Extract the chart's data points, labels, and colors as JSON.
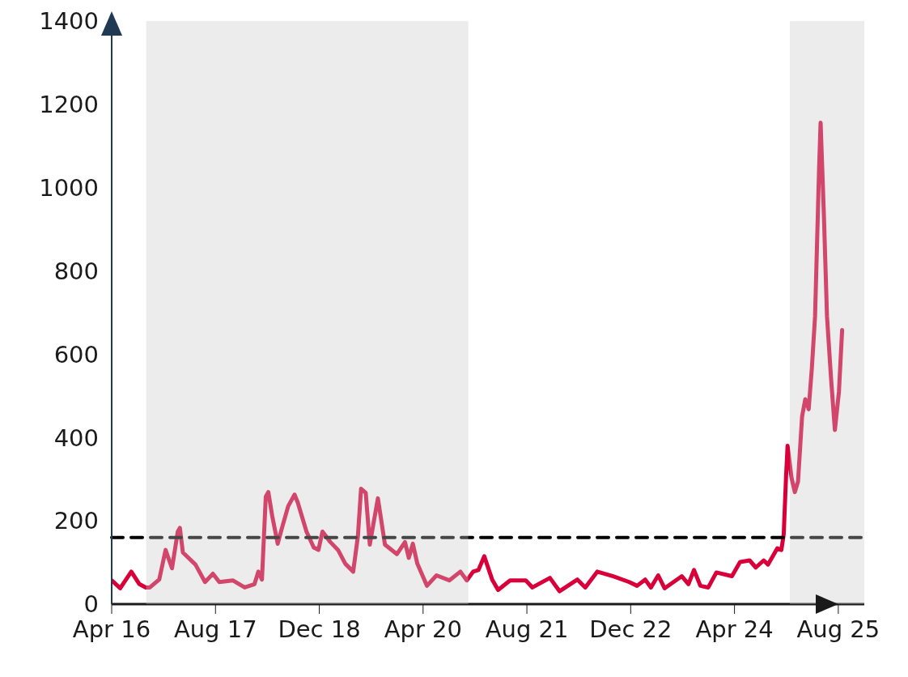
{
  "chart_data": {
    "type": "line",
    "x": [
      "2016-04-01",
      "2016-05-11",
      "2016-07-02",
      "2016-08-09",
      "2016-09-08",
      "2016-09-27",
      "2016-11-10",
      "2016-12-10",
      "2017-01-09",
      "2017-02-05",
      "2017-02-15",
      "2017-03-01",
      "2017-04-29",
      "2017-06-13",
      "2017-07-20",
      "2017-08-19",
      "2017-10-21",
      "2017-12-16",
      "2018-01-31",
      "2018-02-18",
      "2018-03-07",
      "2018-03-25",
      "2018-04-06",
      "2018-04-24",
      "2018-05-20",
      "2018-06-08",
      "2018-07-08",
      "2018-08-07",
      "2018-08-22",
      "2018-10-02",
      "2018-11-05",
      "2018-11-27",
      "2018-12-16",
      "2019-01-22",
      "2019-02-27",
      "2019-04-02",
      "2019-05-09",
      "2019-05-31",
      "2019-06-15",
      "2019-07-07",
      "2019-07-26",
      "2019-09-02",
      "2019-10-05",
      "2019-11-30",
      "2020-01-07",
      "2020-01-25",
      "2020-02-13",
      "2020-03-05",
      "2020-04-19",
      "2020-06-03",
      "2020-08-02",
      "2020-09-23",
      "2020-10-23",
      "2020-11-22",
      "2020-12-17",
      "2021-01-13",
      "2021-02-19",
      "2021-03-19",
      "2021-05-14",
      "2021-07-27",
      "2021-08-27",
      "2021-11-17",
      "2022-01-01",
      "2022-03-26",
      "2022-05-02",
      "2022-06-27",
      "2022-09-10",
      "2022-11-24",
      "2022-12-31",
      "2023-02-07",
      "2023-03-06",
      "2023-04-09",
      "2023-05-09",
      "2023-07-29",
      "2023-08-29",
      "2023-09-24",
      "2023-10-24",
      "2023-11-30",
      "2024-01-07",
      "2024-03-20",
      "2024-04-27",
      "2024-06-11",
      "2024-07-10",
      "2024-08-16",
      "2024-09-05",
      "2024-10-19",
      "2024-11-07",
      "2024-11-18",
      "2024-11-29",
      "2024-12-06",
      "2024-12-25",
      "2025-01-09",
      "2025-01-24",
      "2025-02-12",
      "2025-02-27",
      "2025-03-15",
      "2025-03-30",
      "2025-04-14",
      "2025-05-03",
      "2025-05-10",
      "2025-05-25",
      "2025-06-09",
      "2025-06-28",
      "2025-07-16",
      "2025-08-04",
      "2025-08-19"
    ],
    "series": [
      {
        "color": "#d9003a",
        "values": [
          57,
          38,
          78,
          48,
          40,
          40,
          59,
          130,
          86,
          174,
          183,
          124,
          95,
          53,
          73,
          53,
          57,
          40,
          48,
          78,
          59,
          258,
          269,
          212,
          145,
          181,
          235,
          263,
          244,
          174,
          136,
          130,
          174,
          149,
          130,
          97,
          78,
          162,
          277,
          267,
          143,
          254,
          143,
          120,
          149,
          111,
          145,
          97,
          44,
          69,
          57,
          78,
          57,
          78,
          82,
          115,
          59,
          34,
          57,
          57,
          40,
          63,
          31,
          59,
          40,
          78,
          67,
          53,
          44,
          59,
          40,
          69,
          38,
          67,
          48,
          82,
          44,
          40,
          76,
          67,
          101,
          105,
          88,
          105,
          95,
          134,
          130,
          168,
          307,
          380,
          302,
          269,
          294,
          450,
          492,
          468,
          567,
          691,
          1048,
          1156,
          941,
          691,
          542,
          418,
          510,
          658
        ]
      }
    ],
    "xlim": [
      "2016-04-01",
      "2025-12-01"
    ],
    "xticks": [
      {
        "value": "2016-04-01",
        "label": "Apr 16"
      },
      {
        "value": "2017-08-01",
        "label": "Aug 17"
      },
      {
        "value": "2018-12-01",
        "label": "Dec 18"
      },
      {
        "value": "2020-04-01",
        "label": "Apr 20"
      },
      {
        "value": "2021-08-01",
        "label": "Aug 21"
      },
      {
        "value": "2022-12-01",
        "label": "Dec 22"
      },
      {
        "value": "2024-04-01",
        "label": "Apr 24"
      },
      {
        "value": "2025-08-01",
        "label": "Aug 25"
      }
    ],
    "ylim": [
      0,
      1400
    ],
    "yticks": [
      0,
      200,
      400,
      600,
      800,
      1000,
      1200,
      1400
    ],
    "ref_lines": [
      {
        "axis": "y",
        "value": 160,
        "color": "#000000",
        "line_style": "dashed"
      }
    ],
    "bands": [
      {
        "axis": "x",
        "from": "2016-09-10",
        "to": "2020-10-30",
        "color": "#c8c8c8"
      },
      {
        "axis": "x",
        "from": "2024-12-17",
        "to": "2025-12-01",
        "color": "#c8c8c8"
      }
    ],
    "marker": "none",
    "line_style": "solid"
  }
}
